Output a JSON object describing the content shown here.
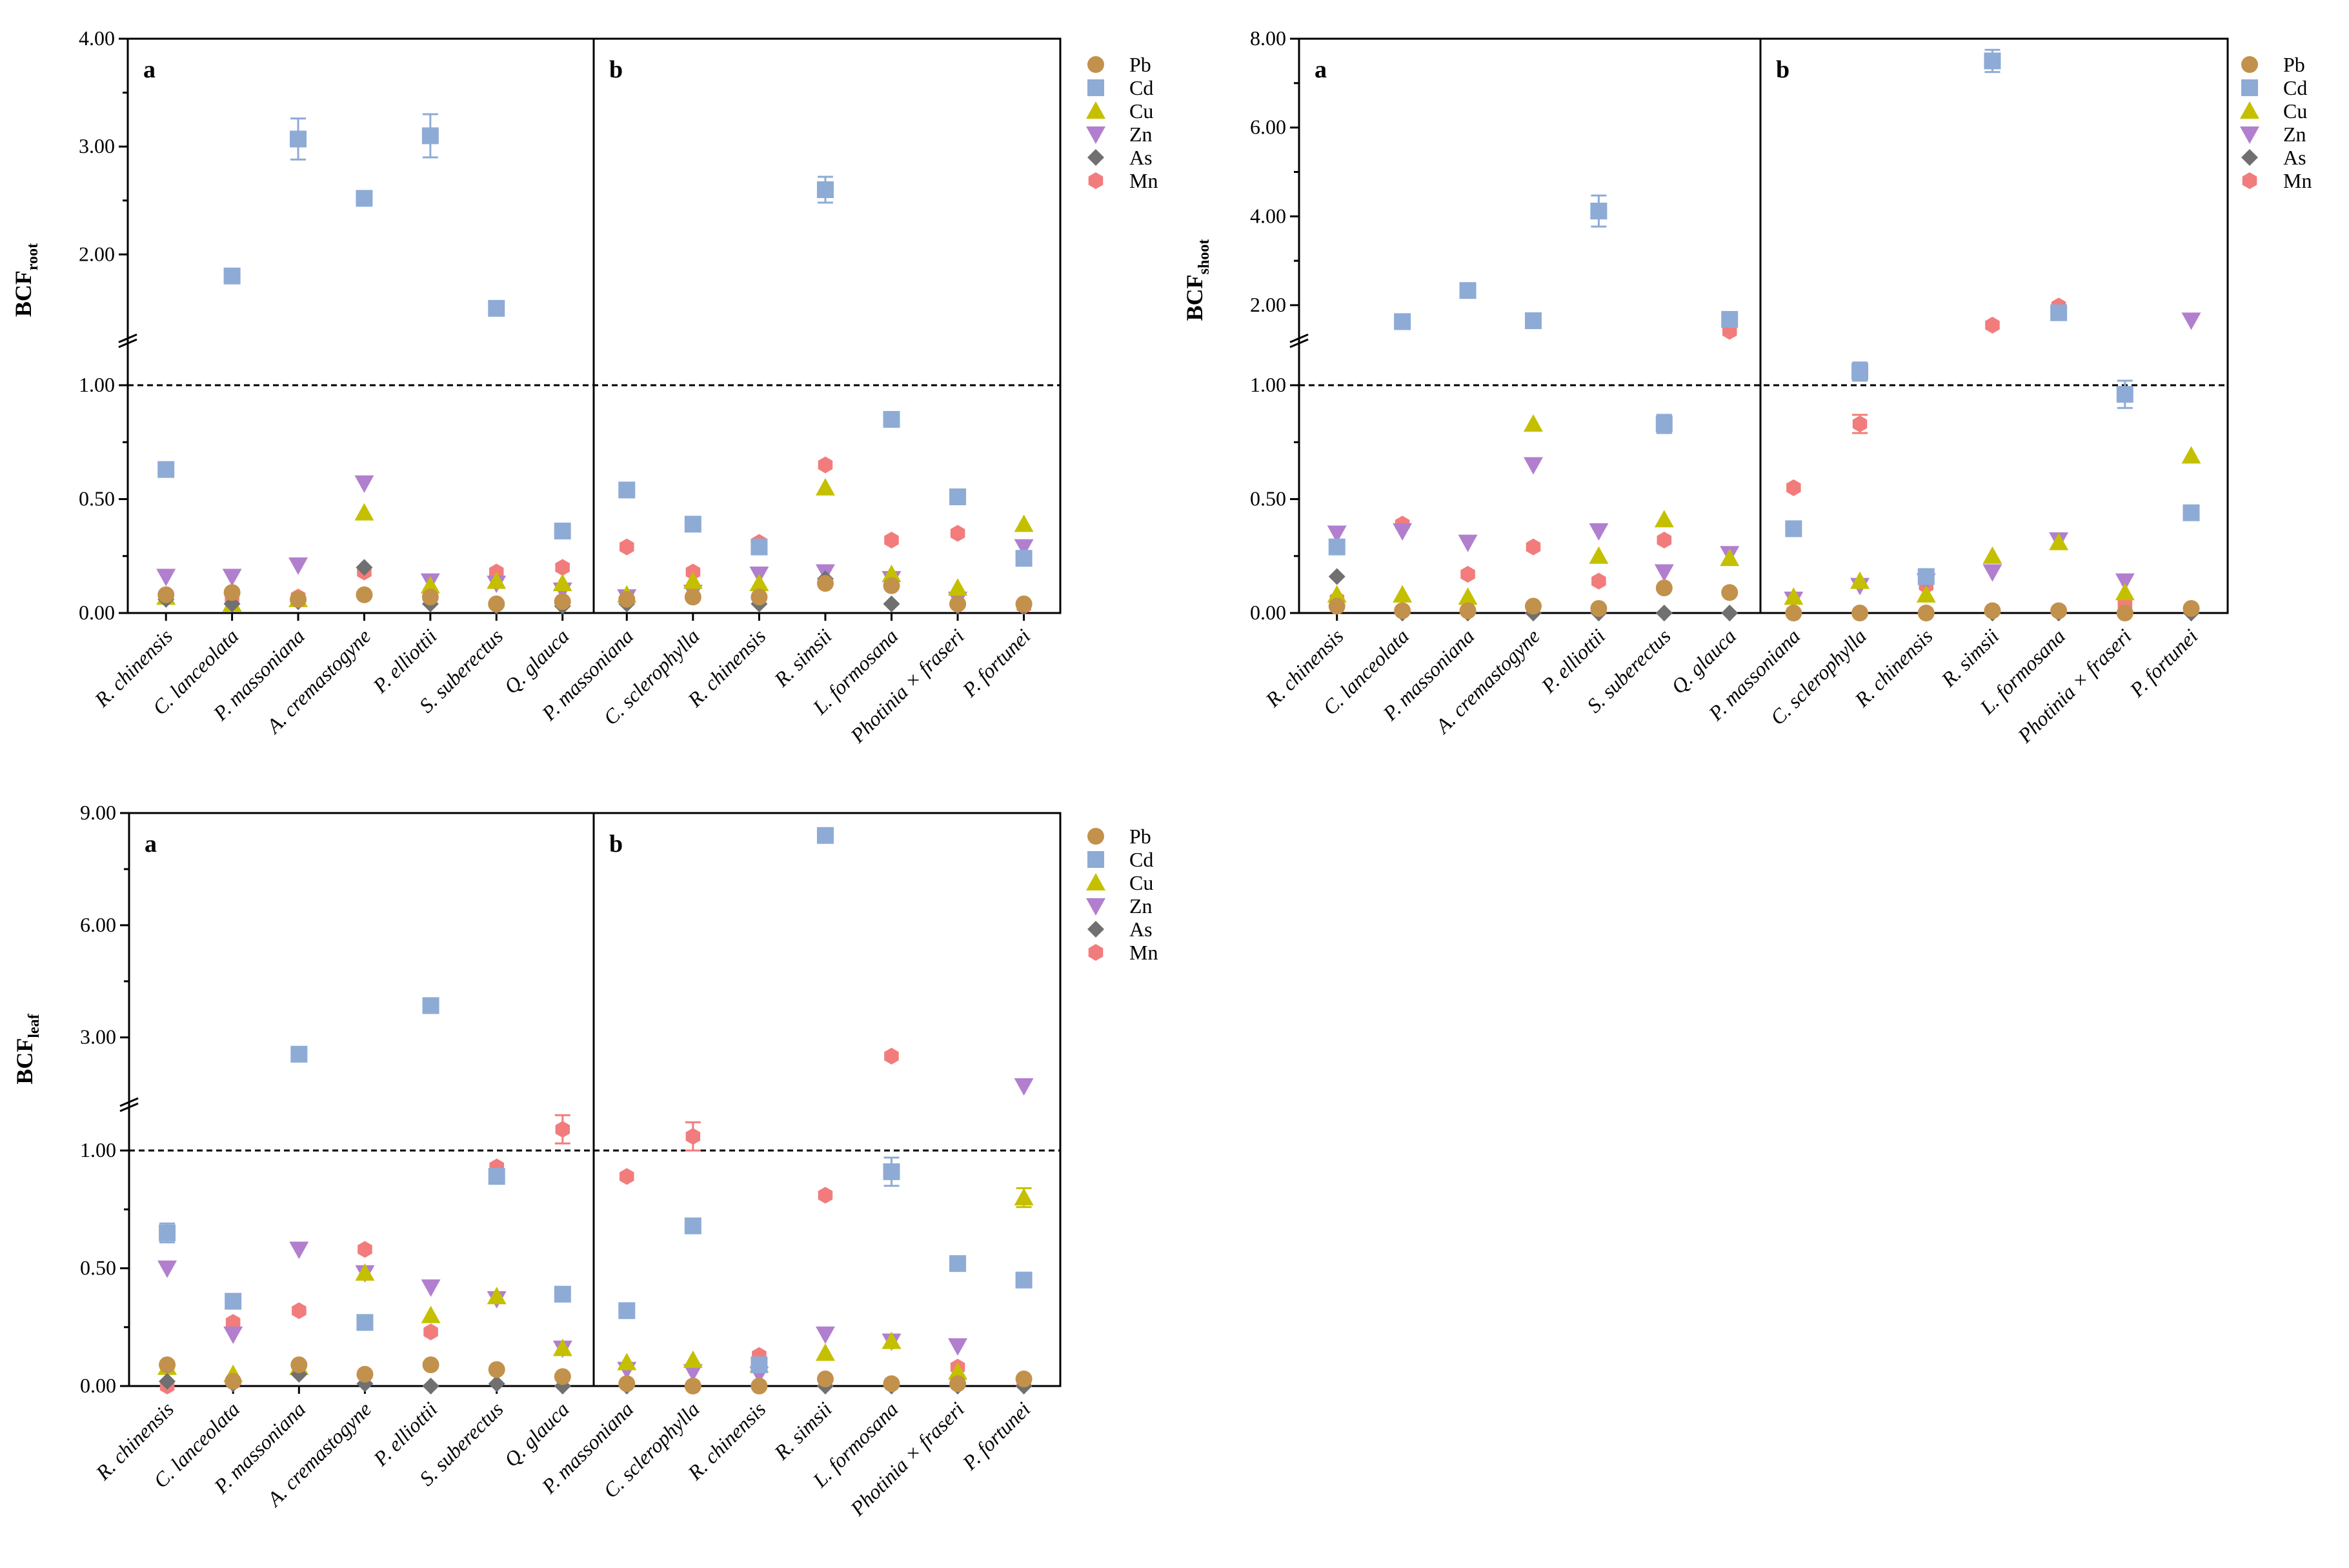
{
  "colors": {
    "Pb": "#c2914c",
    "Cd": "#8eabd6",
    "Cu": "#c4c000",
    "Zn": "#b17fce",
    "As": "#707070",
    "Mn": "#f27c7c"
  },
  "chart_data": [
    {
      "type": "scatter",
      "id": "root",
      "ylabel_main": "BCF",
      "ylabel_sub": "root",
      "panel_labels": [
        "a",
        "b"
      ],
      "lower_ticks": [
        "0.00",
        "0.50",
        "1.00"
      ],
      "upper_ticks": [
        "2.00",
        "3.00",
        "4.00"
      ],
      "lower_range": [
        0,
        1.2
      ],
      "upper_range": [
        1.2,
        4.0
      ],
      "reference_line": 1.0,
      "legend": [
        "Pb",
        "Cd",
        "Cu",
        "Zn",
        "As",
        "Mn"
      ],
      "groups": [
        {
          "label": "a",
          "species": [
            "R. chinensis",
            "C. lanceolata",
            "P. massoniana",
            "A. cremastogyne",
            "P. elliottii",
            "S. suberectus",
            "Q. glauca"
          ],
          "series": {
            "Pb": [
              0.08,
              0.09,
              0.06,
              0.08,
              0.07,
              0.04,
              0.05
            ],
            "Cd": [
              0.63,
              1.8,
              3.07,
              2.52,
              3.1,
              1.5,
              0.36
            ],
            "Cu": [
              0.07,
              0.04,
              0.06,
              0.44,
              0.12,
              0.14,
              0.13
            ],
            "Zn": [
              0.16,
              0.16,
              0.21,
              0.57,
              0.14,
              0.13,
              0.1
            ],
            "As": [
              0.06,
              0.04,
              0.05,
              0.2,
              0.04,
              0.03,
              0.03
            ],
            "Mn": [
              0.07,
              0.06,
              0.07,
              0.18,
              0.09,
              0.18,
              0.2
            ]
          },
          "errors": {
            "Cd": [
              0,
              0,
              0.19,
              0,
              0.2,
              0,
              0
            ]
          }
        },
        {
          "label": "b",
          "species": [
            "P. massoniana",
            "C. sclerophylla",
            "R. chinensis",
            "R. simsii",
            "L. formosana",
            "Photinia × fraseri",
            "P. fortunei"
          ],
          "series": {
            "Pb": [
              0.06,
              0.07,
              0.07,
              0.13,
              0.12,
              0.04,
              0.04
            ],
            "Cd": [
              0.54,
              0.39,
              0.29,
              2.6,
              0.85,
              0.51,
              0.24
            ],
            "Cu": [
              0.08,
              0.14,
              0.13,
              0.55,
              0.17,
              0.11,
              0.39
            ],
            "Zn": [
              0.07,
              0.09,
              0.17,
              0.18,
              0.15,
              0.06,
              0.29
            ],
            "As": [
              0.04,
              0.07,
              0.04,
              0.15,
              0.04,
              0.03,
              0.03
            ],
            "Mn": [
              0.29,
              0.18,
              0.31,
              0.65,
              0.32,
              0.35,
              0.03
            ]
          },
          "errors": {
            "Cd": [
              0.03,
              0,
              0,
              0.12,
              0.03,
              0.02,
              0
            ]
          }
        }
      ]
    },
    {
      "type": "scatter",
      "id": "shoot",
      "ylabel_main": "BCF",
      "ylabel_sub": "shoot",
      "panel_labels": [
        "a",
        "b"
      ],
      "lower_ticks": [
        "0.00",
        "0.50",
        "1.00"
      ],
      "upper_ticks": [
        "2.00",
        "4.00",
        "6.00",
        "8.00"
      ],
      "lower_range": [
        0,
        1.2
      ],
      "upper_range": [
        1.2,
        8.0
      ],
      "reference_line": 1.0,
      "legend": [
        "Pb",
        "Cd",
        "Cu",
        "Zn",
        "As",
        "Mn"
      ],
      "groups": [
        {
          "label": "a",
          "species": [
            "R. chinensis",
            "C. lanceolata",
            "P. massoniana",
            "A. cremastogyne",
            "P. elliottii",
            "S. suberectus",
            "Q. glauca"
          ],
          "series": {
            "Pb": [
              0.03,
              0.01,
              0.01,
              0.03,
              0.02,
              0.11,
              0.09
            ],
            "Cd": [
              0.29,
              1.63,
              2.33,
              1.65,
              4.12,
              0.83,
              1.68
            ],
            "Cu": [
              0.08,
              0.08,
              0.07,
              0.83,
              0.25,
              0.41,
              0.24
            ],
            "Zn": [
              0.35,
              0.36,
              0.31,
              0.65,
              0.36,
              0.18,
              0.26
            ],
            "As": [
              0.16,
              0.0,
              0.0,
              0.0,
              0.0,
              0.0,
              0.0
            ],
            "Mn": [
              0.06,
              0.39,
              0.17,
              0.29,
              0.14,
              0.32,
              1.41
            ]
          },
          "errors": {
            "Cd": [
              0,
              0,
              0,
              0,
              0.35,
              0.04,
              0
            ]
          }
        },
        {
          "label": "b",
          "species": [
            "P. massoniana",
            "C. sclerophylla",
            "R. chinensis",
            "R. simsii",
            "L. formosana",
            "Photinia × fraseri",
            "P. fortunei"
          ],
          "series": {
            "Pb": [
              0.0,
              0.0,
              0.0,
              0.01,
              0.01,
              0.0,
              0.02
            ],
            "Cd": [
              0.37,
              1.06,
              0.16,
              7.5,
              1.83,
              0.96,
              0.44
            ],
            "Cu": [
              0.07,
              0.14,
              0.08,
              0.25,
              0.31,
              0.09,
              0.69
            ],
            "Zn": [
              0.06,
              0.12,
              0.14,
              0.18,
              0.32,
              0.14,
              1.66
            ],
            "As": [
              0.0,
              0.0,
              0.0,
              0.0,
              0.0,
              0.0,
              0.0
            ],
            "Mn": [
              0.55,
              0.83,
              0.12,
              1.55,
              1.98,
              0.04,
              0.02
            ]
          },
          "errors": {
            "Cd": [
              0,
              0.04,
              0,
              0.25,
              0,
              0.06,
              0
            ],
            "Mn": [
              0,
              0.04,
              0,
              0,
              0,
              0,
              0
            ]
          }
        }
      ]
    },
    {
      "type": "scatter",
      "id": "leaf",
      "ylabel_main": "BCF",
      "ylabel_sub": "leaf",
      "panel_labels": [
        "a",
        "b"
      ],
      "lower_ticks": [
        "0.00",
        "0.50",
        "1.00"
      ],
      "upper_ticks": [
        "3.00",
        "6.00",
        "9.00"
      ],
      "lower_range": [
        0,
        1.2
      ],
      "upper_range": [
        1.2,
        9.0
      ],
      "reference_line": 1.0,
      "legend": [
        "Pb",
        "Cd",
        "Cu",
        "Zn",
        "As",
        "Mn"
      ],
      "groups": [
        {
          "label": "a",
          "species": [
            "R. chinensis",
            "C. lanceolata",
            "P. massoniana",
            "A. cremastogyne",
            "P. elliottii",
            "S. suberectus",
            "Q. glauca"
          ],
          "series": {
            "Pb": [
              0.09,
              0.02,
              0.09,
              0.05,
              0.09,
              0.07,
              0.04
            ],
            "Cd": [
              0.65,
              0.36,
              2.55,
              0.27,
              3.85,
              0.89,
              0.39
            ],
            "Cu": [
              0.08,
              0.05,
              0.08,
              0.48,
              0.3,
              0.38,
              0.16
            ],
            "Zn": [
              0.5,
              0.22,
              0.58,
              0.48,
              0.42,
              0.37,
              0.16
            ],
            "As": [
              0.02,
              0.01,
              0.05,
              0.01,
              0.0,
              0.01,
              0.0
            ],
            "Mn": [
              0.0,
              0.27,
              0.32,
              0.58,
              0.23,
              0.93,
              1.09
            ]
          },
          "errors": {
            "Cd": [
              0.04,
              0,
              0,
              0,
              0,
              0,
              0
            ],
            "Mn": [
              0,
              0,
              0,
              0,
              0,
              0,
              0.06
            ]
          }
        },
        {
          "label": "b",
          "species": [
            "P. massoniana",
            "C. sclerophylla",
            "R. chinensis",
            "R. simsii",
            "L. formosana",
            "Photinia × fraseri",
            "P. fortunei"
          ],
          "series": {
            "Pb": [
              0.01,
              0.0,
              0.0,
              0.03,
              0.01,
              0.01,
              0.03
            ],
            "Cd": [
              0.32,
              0.68,
              0.09,
              8.4,
              0.91,
              0.52,
              0.45
            ],
            "Cu": [
              0.1,
              0.11,
              0.09,
              0.14,
              0.19,
              0.06,
              0.8
            ],
            "Zn": [
              0.07,
              0.06,
              0.05,
              0.22,
              0.19,
              0.17,
              1.7
            ],
            "As": [
              0.0,
              0.0,
              0.0,
              0.0,
              0.0,
              0.0,
              0.0
            ],
            "Mn": [
              0.89,
              1.06,
              0.13,
              0.81,
              2.5,
              0.08,
              0.02
            ]
          },
          "errors": {
            "Cd": [
              0,
              0,
              0,
              0,
              0.06,
              0,
              0
            ],
            "Mn": [
              0,
              0.06,
              0,
              0,
              0,
              0,
              0
            ],
            "Cu": [
              0,
              0,
              0,
              0,
              0,
              0,
              0.04
            ]
          }
        }
      ]
    }
  ]
}
